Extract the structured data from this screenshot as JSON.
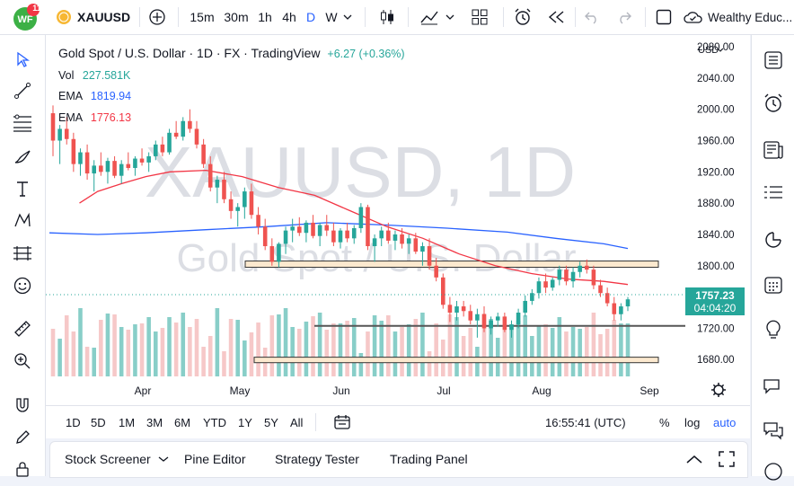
{
  "header": {
    "symbol": "XAUUSD",
    "notification_count": "11",
    "intervals": [
      "15m",
      "30m",
      "1h",
      "4h",
      "D",
      "W"
    ],
    "active_interval": "D",
    "layout_name": "Wealthy Educ..."
  },
  "legend": {
    "title": "Gold Spot / U.S. Dollar · 1D · FX · TradingView",
    "change": "+6.27 (+0.36%)",
    "indicators": [
      {
        "name": "Vol",
        "value": "227.581K",
        "color": "#26a69a"
      },
      {
        "name": "EMA",
        "value": "1819.94",
        "color": "#2962ff"
      },
      {
        "name": "EMA",
        "value": "1776.13",
        "color": "#f23645"
      }
    ]
  },
  "watermark": {
    "symbol": "XAUUSD, 1D",
    "description": "Gold Spot / U.S. Dollar"
  },
  "price_axis": {
    "currency": "USD",
    "ticks": [
      "2080.00",
      "2040.00",
      "2000.00",
      "1960.00",
      "1920.00",
      "1880.00",
      "1840.00",
      "1800.00",
      "1720.00",
      "1680.00"
    ],
    "last_price": "1757.23",
    "countdown": "04:04:20"
  },
  "time_axis": {
    "labels": [
      "Apr",
      "May",
      "Jun",
      "Jul",
      "Aug",
      "Sep"
    ]
  },
  "bottom": {
    "ranges": [
      "1D",
      "5D",
      "1M",
      "3M",
      "6M",
      "YTD",
      "1Y",
      "5Y",
      "All"
    ],
    "clock": "16:55:41 (UTC)",
    "percent": "%",
    "log": "log",
    "auto": "auto"
  },
  "panels": [
    "Stock Screener",
    "Pine Editor",
    "Strategy Tester",
    "Trading Panel"
  ],
  "chart_data": {
    "type": "candlestick",
    "symbol": "XAUUSD",
    "ylim": [
      1655,
      2095
    ],
    "y_ticks": [
      1680,
      1720,
      1800,
      1840,
      1880,
      1920,
      1960,
      2000,
      2040,
      2080
    ],
    "x_labels": [
      "Apr",
      "May",
      "Jun",
      "Jul",
      "Aug",
      "Sep"
    ],
    "start": 2000,
    "trend": [
      [
        1,
        -170
      ],
      [
        1,
        -10
      ],
      [
        16,
        27
      ],
      [
        20,
        -24
      ],
      [
        26,
        -60
      ],
      [
        30,
        -30
      ],
      [
        20,
        -78
      ],
      [
        16,
        -104
      ],
      [
        10,
        -40
      ],
      [
        14,
        -36
      ],
      [
        10,
        -63
      ],
      [
        16,
        -55
      ],
      [
        16,
        -75
      ],
      [
        20,
        -64
      ],
      [
        14,
        -84
      ],
      [
        14,
        -56
      ],
      [
        14,
        -150
      ],
      [
        10,
        -100
      ],
      [
        10,
        -80
      ],
      [
        16,
        -78
      ],
      [
        10,
        -2
      ],
      [
        16,
        28
      ],
      [
        10,
        5
      ],
      [
        20,
        56
      ],
      [
        10,
        40
      ],
      [
        10,
        0
      ],
      [
        8,
        -26
      ],
      [
        8,
        -26
      ],
      [
        8,
        -24
      ],
      [
        6,
        -10
      ]
    ],
    "candles": [
      [
        1995,
        2005,
        1940,
        1960
      ],
      [
        1960,
        1980,
        1930,
        1975
      ],
      [
        1975,
        1990,
        1955,
        1962
      ],
      [
        1962,
        1970,
        1920,
        1930
      ],
      [
        1930,
        1950,
        1915,
        1945
      ],
      [
        1945,
        1955,
        1910,
        1918
      ],
      [
        1918,
        1935,
        1895,
        1928
      ],
      [
        1928,
        1945,
        1915,
        1920
      ],
      [
        1920,
        1938,
        1905,
        1934
      ],
      [
        1934,
        1940,
        1912,
        1915
      ],
      [
        1915,
        1935,
        1905,
        1930
      ],
      [
        1930,
        1945,
        1922,
        1925
      ],
      [
        1925,
        1940,
        1915,
        1937
      ],
      [
        1937,
        1950,
        1928,
        1932
      ],
      [
        1932,
        1945,
        1920,
        1940
      ],
      [
        1940,
        1960,
        1935,
        1955
      ],
      [
        1955,
        1965,
        1940,
        1945
      ],
      [
        1945,
        1975,
        1942,
        1970
      ],
      [
        1970,
        1985,
        1962,
        1965
      ],
      [
        1965,
        1990,
        1960,
        1985
      ],
      [
        1985,
        2000,
        1970,
        1975
      ],
      [
        1975,
        1985,
        1950,
        1955
      ],
      [
        1955,
        1962,
        1925,
        1930
      ],
      [
        1930,
        1940,
        1895,
        1900
      ],
      [
        1900,
        1915,
        1880,
        1910
      ],
      [
        1910,
        1920,
        1880,
        1885
      ],
      [
        1885,
        1895,
        1860,
        1870
      ],
      [
        1870,
        1880,
        1850,
        1875
      ],
      [
        1875,
        1900,
        1860,
        1895
      ],
      [
        1895,
        1905,
        1860,
        1865
      ],
      [
        1865,
        1875,
        1840,
        1850
      ],
      [
        1850,
        1860,
        1820,
        1825
      ],
      [
        1825,
        1835,
        1800,
        1805
      ],
      [
        1805,
        1830,
        1798,
        1828
      ],
      [
        1828,
        1850,
        1815,
        1845
      ],
      [
        1845,
        1860,
        1830,
        1850
      ],
      [
        1850,
        1862,
        1838,
        1842
      ],
      [
        1842,
        1858,
        1830,
        1855
      ],
      [
        1855,
        1865,
        1835,
        1838
      ],
      [
        1838,
        1855,
        1825,
        1852
      ],
      [
        1852,
        1865,
        1838,
        1845
      ],
      [
        1845,
        1855,
        1825,
        1830
      ],
      [
        1830,
        1848,
        1822,
        1845
      ],
      [
        1845,
        1855,
        1830,
        1835
      ],
      [
        1835,
        1852,
        1828,
        1848
      ],
      [
        1848,
        1880,
        1842,
        1875
      ],
      [
        1875,
        1878,
        1820,
        1825
      ],
      [
        1825,
        1840,
        1805,
        1835
      ],
      [
        1835,
        1850,
        1825,
        1845
      ],
      [
        1845,
        1855,
        1828,
        1832
      ],
      [
        1832,
        1845,
        1820,
        1840
      ],
      [
        1840,
        1848,
        1822,
        1828
      ],
      [
        1828,
        1840,
        1815,
        1835
      ],
      [
        1835,
        1842,
        1815,
        1818
      ],
      [
        1818,
        1830,
        1800,
        1825
      ],
      [
        1825,
        1835,
        1795,
        1800
      ],
      [
        1800,
        1810,
        1780,
        1785
      ],
      [
        1785,
        1790,
        1745,
        1750
      ],
      [
        1750,
        1760,
        1728,
        1740
      ],
      [
        1740,
        1755,
        1730,
        1748
      ],
      [
        1748,
        1755,
        1735,
        1742
      ],
      [
        1742,
        1750,
        1725,
        1730
      ],
      [
        1730,
        1745,
        1708,
        1738
      ],
      [
        1738,
        1748,
        1715,
        1720
      ],
      [
        1720,
        1735,
        1712,
        1730
      ],
      [
        1730,
        1740,
        1722,
        1735
      ],
      [
        1735,
        1740,
        1715,
        1718
      ],
      [
        1718,
        1730,
        1708,
        1725
      ],
      [
        1725,
        1745,
        1720,
        1740
      ],
      [
        1740,
        1762,
        1735,
        1755
      ],
      [
        1755,
        1770,
        1750,
        1765
      ],
      [
        1765,
        1785,
        1758,
        1780
      ],
      [
        1780,
        1790,
        1765,
        1772
      ],
      [
        1772,
        1785,
        1768,
        1782
      ],
      [
        1782,
        1800,
        1775,
        1795
      ],
      [
        1795,
        1800,
        1775,
        1780
      ],
      [
        1780,
        1798,
        1772,
        1792
      ],
      [
        1792,
        1805,
        1785,
        1800
      ],
      [
        1800,
        1808,
        1790,
        1795
      ],
      [
        1795,
        1800,
        1770,
        1775
      ],
      [
        1775,
        1782,
        1760,
        1765
      ],
      [
        1765,
        1772,
        1748,
        1752
      ],
      [
        1752,
        1760,
        1730,
        1738
      ],
      [
        1738,
        1752,
        1730,
        1748
      ],
      [
        1748,
        1760,
        1742,
        1757
      ]
    ],
    "ema_blue": [
      [
        1720,
        1842
      ],
      [
        1760,
        1840
      ],
      [
        1800,
        1842
      ],
      [
        1850,
        1846
      ],
      [
        1900,
        1850
      ],
      [
        1950,
        1855
      ],
      [
        2000,
        1852
      ],
      [
        2050,
        1848
      ],
      [
        2100,
        1843
      ],
      [
        2140,
        1835
      ],
      [
        2180,
        1828
      ],
      [
        2200,
        1822
      ]
    ],
    "ema_red": [
      [
        1745,
        1880
      ],
      [
        1760,
        1895
      ],
      [
        1780,
        1905
      ],
      [
        1800,
        1914
      ],
      [
        1820,
        1920
      ],
      [
        1850,
        1922
      ],
      [
        1880,
        1914
      ],
      [
        1910,
        1900
      ],
      [
        1940,
        1890
      ],
      [
        1970,
        1870
      ],
      [
        2000,
        1850
      ],
      [
        2030,
        1835
      ],
      [
        2060,
        1815
      ],
      [
        2090,
        1800
      ],
      [
        2120,
        1790
      ],
      [
        2150,
        1783
      ],
      [
        2180,
        1780
      ],
      [
        2200,
        1776
      ]
    ],
    "resistance_zone": [
      1806,
      1798
    ],
    "support_zone": [
      1676,
      1683
    ],
    "support_line": 1723
  }
}
